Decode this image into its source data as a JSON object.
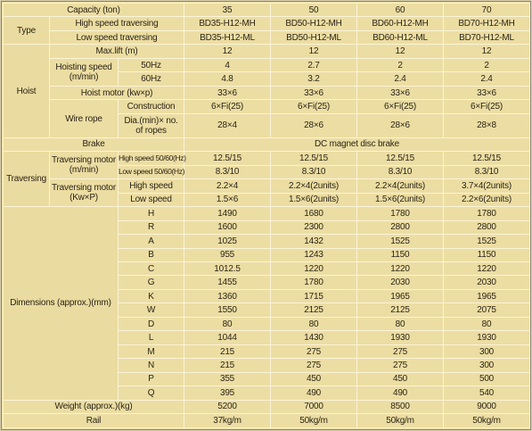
{
  "table": {
    "rows": [
      [
        "Capacity (ton)",
        "35",
        "50",
        "60",
        "70"
      ],
      [
        "Type",
        "High speed traversing",
        "BD35-H12-MH",
        "BD50-H12-MH",
        "BD60-H12-MH",
        "BD70-H12-MH"
      ],
      [
        "Low speed traversing",
        "BD35-H12-ML",
        "BD50-H12-ML",
        "BD60-H12-ML",
        "BD70-H12-ML"
      ],
      [
        "Hoist",
        "Max.lift (m)",
        "12",
        "12",
        "12",
        "12"
      ],
      [
        "Hoisting speed (m/min)",
        "50Hz",
        "4",
        "2.7",
        "2",
        "2"
      ],
      [
        "60Hz",
        "4.8",
        "3.2",
        "2.4",
        "2.4"
      ],
      [
        "Hoist motor (kw×p)",
        "33×6",
        "33×6",
        "33×6",
        "33×6"
      ],
      [
        "Wire rope",
        "Construction",
        "6×Fi(25)",
        "6×Fi(25)",
        "6×Fi(25)",
        "6×Fi(25)"
      ],
      [
        "Dia.(min)× no. of ropes",
        "28×4",
        "28×6",
        "28×6",
        "28×8"
      ],
      [
        "Brake",
        "DC magnet disc brake"
      ],
      [
        "Traversing",
        "Traversing motor (m/min)",
        "High speed 50/60(Hz)",
        "12.5/15",
        "12.5/15",
        "12.5/15",
        "12.5/15"
      ],
      [
        "Low speed 50/60(Hz)",
        "8.3/10",
        "8.3/10",
        "8.3/10",
        "8.3/10"
      ],
      [
        "Traversing motor (Kw×P)",
        "High speed",
        "2.2×4",
        "2.2×4(2units)",
        "2.2×4(2units)",
        "3.7×4(2units)"
      ],
      [
        "Low speed",
        "1.5×6",
        "1.5×6(2units)",
        "1.5×6(2units)",
        "2.2×6(2units)"
      ],
      [
        "Dimensions (approx.)(mm)",
        "H",
        "1490",
        "1680",
        "1780",
        "1780"
      ],
      [
        "R",
        "1600",
        "2300",
        "2800",
        "2800"
      ],
      [
        "A",
        "1025",
        "1432",
        "1525",
        "1525"
      ],
      [
        "B",
        "955",
        "1243",
        "1150",
        "1150"
      ],
      [
        "C",
        "1012.5",
        "1220",
        "1220",
        "1220"
      ],
      [
        "G",
        "1455",
        "1780",
        "2030",
        "2030"
      ],
      [
        "K",
        "1360",
        "1715",
        "1965",
        "1965"
      ],
      [
        "W",
        "1550",
        "2125",
        "2125",
        "2075"
      ],
      [
        "D",
        "80",
        "80",
        "80",
        "80"
      ],
      [
        "L",
        "1044",
        "1430",
        "1930",
        "1930"
      ],
      [
        "M",
        "215",
        "275",
        "275",
        "300"
      ],
      [
        "N",
        "215",
        "275",
        "275",
        "300"
      ],
      [
        "P",
        "355",
        "450",
        "450",
        "500"
      ],
      [
        "Q",
        "395",
        "490",
        "490",
        "540"
      ],
      [
        "Weight (approx.)(kg)",
        "5200",
        "7000",
        "8500",
        "9000"
      ],
      [
        "Rail",
        "37kg/m",
        "50kg/m",
        "50kg/m",
        "50kg/m"
      ]
    ]
  }
}
